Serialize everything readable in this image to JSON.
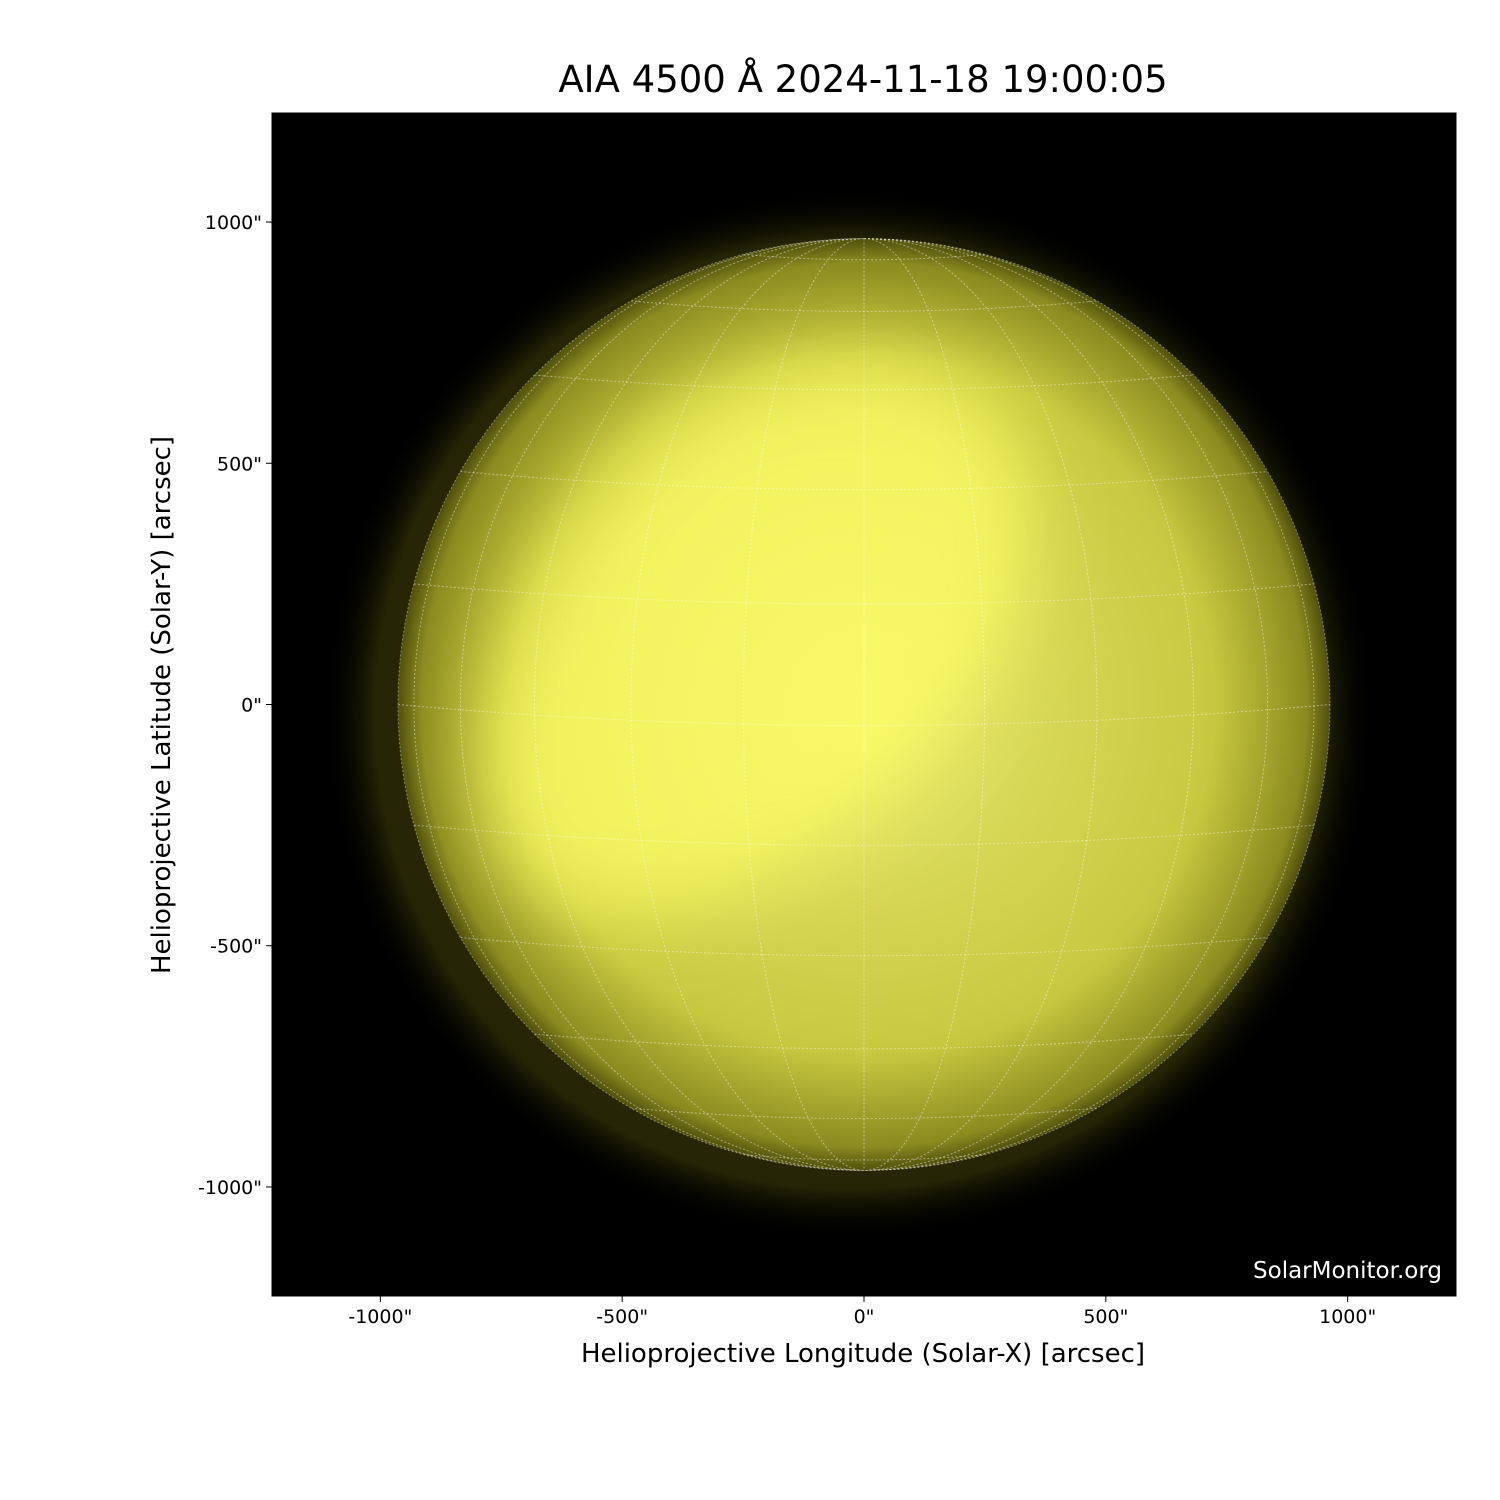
{
  "chart_data": {
    "type": "image",
    "title": "AIA 4500 Å 2024-11-18 19:00:05",
    "x_label": "Helioprojective Longitude (Solar-X) [arcsec]",
    "y_label": "Helioprojective Latitude (Solar-Y) [arcsec]",
    "watermark": "SolarMonitor.org",
    "xlim": [
      -1224,
      1224
    ],
    "ylim": [
      -1226,
      1226
    ],
    "xticks": [
      {
        "value": -1000,
        "label": "-1000\""
      },
      {
        "value": -500,
        "label": "-500\""
      },
      {
        "value": 0,
        "label": "0\""
      },
      {
        "value": 500,
        "label": "500\""
      },
      {
        "value": 1000,
        "label": "1000\""
      }
    ],
    "yticks": [
      {
        "value": -1000,
        "label": "-1000\""
      },
      {
        "value": -500,
        "label": "-500\""
      },
      {
        "value": 0,
        "label": "0\""
      },
      {
        "value": 500,
        "label": "500\""
      },
      {
        "value": 1000,
        "label": "1000\""
      }
    ],
    "color": "#ffff66"
  }
}
